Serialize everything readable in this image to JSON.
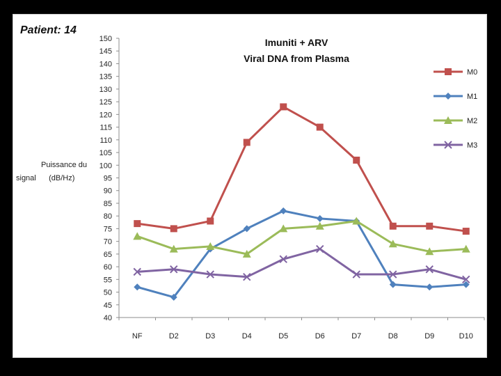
{
  "patient_label": "Patient: 14",
  "chart_data": {
    "type": "line",
    "title_lines": [
      "Imuniti + ARV",
      "Viral DNA from Plasma"
    ],
    "ylabel_lines": [
      "Puissance du",
      "signal      (dB/Hz)"
    ],
    "xlabel": "",
    "categories": [
      "NF",
      "D2",
      "D3",
      "D4",
      "D5",
      "D6",
      "D7",
      "D8",
      "D9",
      "D10"
    ],
    "ylim": [
      40,
      150
    ],
    "ytick_step": 5,
    "legend_position": "right",
    "series": [
      {
        "name": "M0",
        "color": "#c0504d",
        "marker": "square",
        "values": [
          77,
          75,
          78,
          109,
          123,
          115,
          102,
          76,
          76,
          74
        ]
      },
      {
        "name": "M1",
        "color": "#4f81bd",
        "marker": "diamond",
        "values": [
          52,
          48,
          67,
          75,
          82,
          79,
          78,
          53,
          52,
          53
        ]
      },
      {
        "name": "M2",
        "color": "#9bbb59",
        "marker": "triangle",
        "values": [
          72,
          67,
          68,
          65,
          75,
          76,
          78,
          69,
          66,
          67
        ]
      },
      {
        "name": "M3",
        "color": "#8064a2",
        "marker": "x",
        "values": [
          58,
          59,
          57,
          56,
          63,
          67,
          57,
          57,
          59,
          55
        ]
      }
    ]
  }
}
